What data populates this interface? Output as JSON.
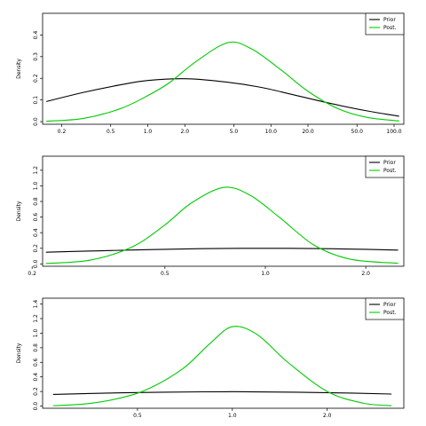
{
  "chart_data": [
    {
      "type": "line",
      "xscale": "log",
      "xlim": [
        0.14,
        120
      ],
      "ylim": [
        -0.012,
        0.5
      ],
      "ylabel": "Density",
      "xticks": [
        0.2,
        0.5,
        1.0,
        2.0,
        5.0,
        10.0,
        20.0,
        50.0,
        100.0
      ],
      "xtick_labels": [
        "0.2",
        "0.5",
        "1.0",
        "2.0",
        "5.0",
        "10.0",
        "20.0",
        "50.0",
        "100.0"
      ],
      "yticks": [
        0.0,
        0.1,
        0.2,
        0.3,
        0.4
      ],
      "ytick_labels": [
        "0.0",
        "0.1",
        "0.2",
        "0.3",
        "0.4"
      ],
      "legend": {
        "position": "top-right",
        "entries": [
          "Prior",
          "Post."
        ]
      },
      "series": [
        {
          "name": "Prior",
          "color": "#000000",
          "x": [
            0.15,
            0.3,
            0.6,
            1.0,
            2.0,
            4.0,
            8.0,
            15.0,
            30.0,
            60.0,
            110.0
          ],
          "y": [
            0.093,
            0.135,
            0.17,
            0.19,
            0.198,
            0.185,
            0.16,
            0.125,
            0.085,
            0.05,
            0.025
          ]
        },
        {
          "name": "Post.",
          "color": "#00cc00",
          "x": [
            0.15,
            0.3,
            0.6,
            1.0,
            1.5,
            2.5,
            4.5,
            7.0,
            12.0,
            20.0,
            35.0,
            60.0,
            110.0
          ],
          "y": [
            0.002,
            0.015,
            0.06,
            0.12,
            0.18,
            0.28,
            0.365,
            0.335,
            0.24,
            0.14,
            0.06,
            0.02,
            0.003
          ]
        }
      ]
    },
    {
      "type": "line",
      "xscale": "log",
      "xlim": [
        0.215,
        2.6
      ],
      "ylim": [
        -0.03,
        1.38
      ],
      "ylabel": "Density",
      "xticks": [
        0.2,
        0.5,
        1.0,
        2.0
      ],
      "xtick_labels": [
        "0.2",
        "0.5",
        "1.0",
        "2.0"
      ],
      "yticks": [
        0.0,
        0.2,
        0.4,
        0.6,
        0.8,
        1.0,
        1.2
      ],
      "ytick_labels": [
        "0.0",
        "0.2",
        "0.4",
        "0.6",
        "0.8",
        "1.0",
        "1.2"
      ],
      "legend": {
        "position": "top-right",
        "entries": [
          "Prior",
          "Post."
        ]
      },
      "series": [
        {
          "name": "Prior",
          "color": "#000000",
          "x": [
            0.22,
            0.3,
            0.4,
            0.5,
            0.7,
            1.0,
            1.4,
            2.0,
            2.5
          ],
          "y": [
            0.15,
            0.165,
            0.178,
            0.187,
            0.197,
            0.2,
            0.197,
            0.187,
            0.177
          ]
        },
        {
          "name": "Post.",
          "color": "#00cc00",
          "x": [
            0.22,
            0.3,
            0.4,
            0.5,
            0.6,
            0.75,
            0.9,
            1.1,
            1.4,
            1.8,
            2.5
          ],
          "y": [
            0.005,
            0.05,
            0.22,
            0.5,
            0.78,
            0.98,
            0.88,
            0.6,
            0.24,
            0.06,
            0.008
          ]
        }
      ]
    },
    {
      "type": "line",
      "xscale": "log",
      "xlim": [
        0.25,
        3.5
      ],
      "ylim": [
        -0.03,
        1.48
      ],
      "ylabel": "Density",
      "xticks": [
        0.5,
        1.0,
        2.0
      ],
      "xtick_labels": [
        "0.5",
        "1.0",
        "2.0"
      ],
      "yticks": [
        0.0,
        0.2,
        0.4,
        0.6,
        0.8,
        1.0,
        1.2,
        1.4
      ],
      "ytick_labels": [
        "0.0",
        "0.2",
        "0.4",
        "0.6",
        "0.8",
        "1.0",
        "1.2",
        "1.4"
      ],
      "legend": {
        "position": "top-right",
        "entries": [
          "Prior",
          "Post."
        ]
      },
      "series": [
        {
          "name": "Prior",
          "color": "#000000",
          "x": [
            0.27,
            0.4,
            0.6,
            1.0,
            1.6,
            2.4,
            3.2
          ],
          "y": [
            0.16,
            0.178,
            0.19,
            0.197,
            0.19,
            0.178,
            0.165
          ]
        },
        {
          "name": "Post.",
          "color": "#00cc00",
          "x": [
            0.27,
            0.35,
            0.45,
            0.55,
            0.7,
            0.85,
            1.0,
            1.2,
            1.5,
            2.0,
            2.6,
            3.2
          ],
          "y": [
            0.005,
            0.035,
            0.12,
            0.25,
            0.52,
            0.86,
            1.09,
            0.98,
            0.6,
            0.2,
            0.04,
            0.006
          ]
        }
      ]
    }
  ]
}
